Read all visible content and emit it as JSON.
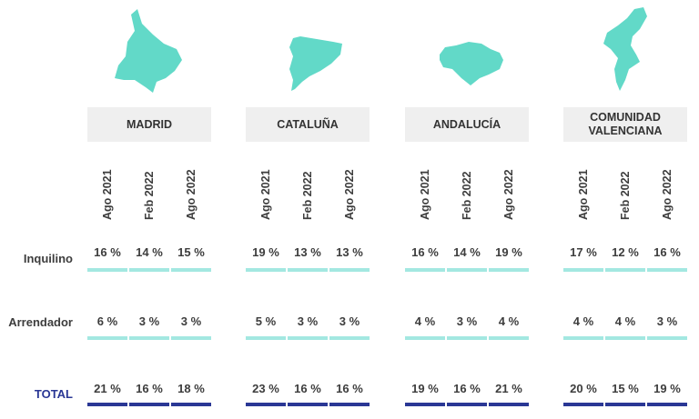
{
  "chart_data": {
    "type": "table",
    "periods": [
      "Ago 2021",
      "Feb 2022",
      "Ago 2022"
    ],
    "rows": [
      "Inquilino",
      "Arrendador",
      "TOTAL"
    ],
    "colors": {
      "map": "#62d9c8",
      "header_bg": "#efefef",
      "bar_light": "#a3e8e1",
      "bar_total": "#2a3795",
      "total_label": "#2a3795",
      "text": "#3d3d3d"
    },
    "regions": [
      {
        "name": "MADRID",
        "values": {
          "Inquilino": [
            "16 %",
            "14 %",
            "15 %"
          ],
          "Arrendador": [
            "6 %",
            "3 %",
            "3 %"
          ],
          "TOTAL": [
            "21 %",
            "16 %",
            "18 %"
          ]
        }
      },
      {
        "name": "CATALUÑA",
        "values": {
          "Inquilino": [
            "19 %",
            "13 %",
            "13 %"
          ],
          "Arrendador": [
            "5 %",
            "3 %",
            "3 %"
          ],
          "TOTAL": [
            "23 %",
            "16 %",
            "16 %"
          ]
        }
      },
      {
        "name": "ANDALUCÍA",
        "values": {
          "Inquilino": [
            "16 %",
            "14 %",
            "19 %"
          ],
          "Arrendador": [
            "4 %",
            "3 %",
            "4 %"
          ],
          "TOTAL": [
            "19 %",
            "16 %",
            "21 %"
          ]
        }
      },
      {
        "name": "COMUNIDAD\nVALENCIANA",
        "values": {
          "Inquilino": [
            "17 %",
            "12 %",
            "16 %"
          ],
          "Arrendador": [
            "4 %",
            "4 %",
            "3 %"
          ],
          "TOTAL": [
            "20 %",
            "15 %",
            "19 %"
          ]
        }
      }
    ]
  }
}
